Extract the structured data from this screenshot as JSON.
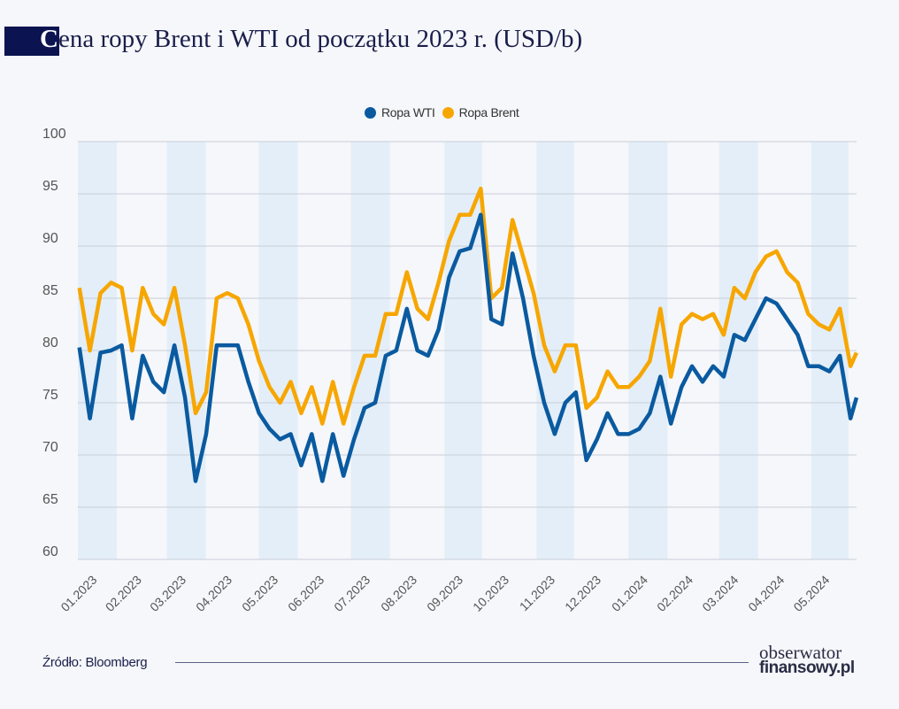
{
  "title": {
    "first_letter": "C",
    "rest": "ena ropy Brent i WTI od początku 2023 r. (USD/b)"
  },
  "source": "Źródło: Bloomberg",
  "logo": {
    "line1": "obserwator",
    "line2": "finansowy.pl"
  },
  "chart_data": {
    "type": "line",
    "title": "Cena ropy Brent i WTI od początku 2023 r. (USD/b)",
    "xlabel": "",
    "ylabel": "",
    "ylim": [
      60,
      100
    ],
    "yticks": [
      60,
      65,
      70,
      75,
      80,
      85,
      90,
      95,
      100
    ],
    "xlim": [
      "2023-01-01",
      "2024-05-31"
    ],
    "grid": true,
    "legend_position": "top-center",
    "month_ticks": [
      "01.2023",
      "02.2023",
      "03.2023",
      "04.2023",
      "05.2023",
      "06.2023",
      "07.2023",
      "08.2023",
      "09.2023",
      "10.2023",
      "11.2023",
      "12.2023",
      "01.2024",
      "02.2024",
      "03.2024",
      "04.2024",
      "05.2024"
    ],
    "x": [
      "2023-01-02",
      "2023-01-09",
      "2023-01-16",
      "2023-01-23",
      "2023-01-30",
      "2023-02-06",
      "2023-02-13",
      "2023-02-20",
      "2023-02-27",
      "2023-03-06",
      "2023-03-13",
      "2023-03-20",
      "2023-03-27",
      "2023-04-03",
      "2023-04-10",
      "2023-04-17",
      "2023-04-24",
      "2023-05-01",
      "2023-05-08",
      "2023-05-15",
      "2023-05-22",
      "2023-05-29",
      "2023-06-05",
      "2023-06-12",
      "2023-06-19",
      "2023-06-26",
      "2023-07-03",
      "2023-07-10",
      "2023-07-17",
      "2023-07-24",
      "2023-07-31",
      "2023-08-07",
      "2023-08-14",
      "2023-08-21",
      "2023-08-28",
      "2023-09-04",
      "2023-09-11",
      "2023-09-18",
      "2023-09-25",
      "2023-10-02",
      "2023-10-09",
      "2023-10-16",
      "2023-10-23",
      "2023-10-30",
      "2023-11-06",
      "2023-11-13",
      "2023-11-20",
      "2023-11-27",
      "2023-12-04",
      "2023-12-11",
      "2023-12-18",
      "2023-12-25",
      "2024-01-01",
      "2024-01-08",
      "2024-01-15",
      "2024-01-22",
      "2024-01-29",
      "2024-02-05",
      "2024-02-12",
      "2024-02-19",
      "2024-02-26",
      "2024-03-04",
      "2024-03-11",
      "2024-03-18",
      "2024-03-25",
      "2024-04-01",
      "2024-04-08",
      "2024-04-15",
      "2024-04-22",
      "2024-04-29",
      "2024-05-06",
      "2024-05-13",
      "2024-05-20",
      "2024-05-27",
      "2024-05-31"
    ],
    "series": [
      {
        "name": "Ropa WTI",
        "color": "#0a5aa0",
        "values": [
          80.3,
          73.5,
          79.8,
          80,
          80.5,
          73.5,
          79.5,
          77,
          76,
          80.5,
          75.5,
          67.5,
          72,
          80.5,
          80.5,
          80.5,
          77,
          74,
          72.5,
          71.5,
          72,
          69,
          72,
          67.5,
          72,
          68,
          71.5,
          74.5,
          75,
          79.5,
          80,
          84,
          80,
          79.5,
          82,
          87,
          89.5,
          89.8,
          93,
          83,
          82.5,
          89.3,
          85,
          79.5,
          75,
          72,
          75,
          76,
          69.5,
          71.5,
          74,
          72,
          72,
          72.5,
          74,
          77.5,
          73,
          76.5,
          78.5,
          77,
          78.5,
          77.5,
          81.5,
          81,
          83,
          85,
          84.5,
          83,
          81.5,
          78.5,
          78.5,
          78,
          79.5,
          73.5,
          75.5
        ]
      },
      {
        "name": "Ropa Brent",
        "color": "#f7a600",
        "values": [
          86,
          80,
          85.5,
          86.5,
          86,
          80,
          86,
          83.5,
          82.5,
          86,
          80.5,
          74,
          76,
          85,
          85.5,
          85,
          82.5,
          79,
          76.5,
          75,
          77,
          74,
          76.5,
          73,
          77,
          73,
          76.5,
          79.5,
          79.5,
          83.5,
          83.5,
          87.5,
          84,
          83,
          86.5,
          90.5,
          93,
          93,
          95.5,
          85,
          86,
          92.5,
          89,
          85.5,
          80.5,
          78,
          80.5,
          80.5,
          74.5,
          75.5,
          78,
          76.5,
          76.5,
          77.5,
          79,
          84,
          77.5,
          82.5,
          83.5,
          83,
          83.5,
          81.5,
          86,
          85,
          87.5,
          89,
          89.5,
          87.5,
          86.5,
          83.5,
          82.5,
          82,
          84,
          78.5,
          79.8
        ]
      }
    ]
  }
}
